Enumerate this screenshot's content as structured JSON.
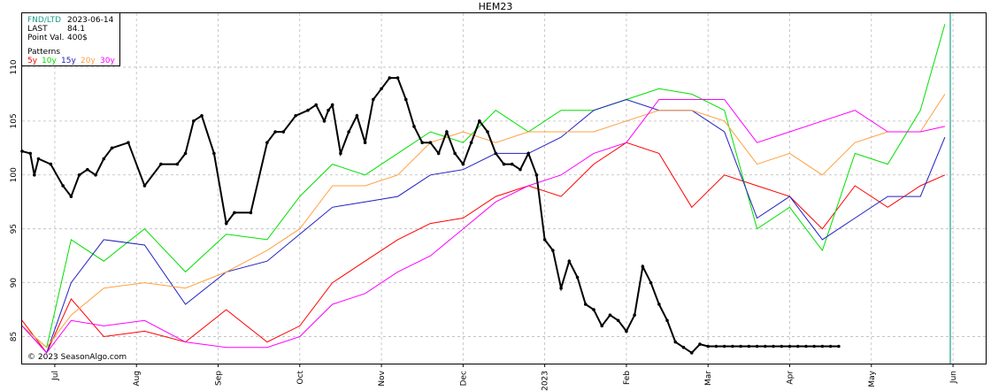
{
  "chart_data": {
    "type": "line",
    "title": "HEM23",
    "ylim": [
      82.5,
      115
    ],
    "yticks": [
      85,
      90,
      95,
      100,
      105,
      110
    ],
    "x_months": [
      "Jul",
      "Aug",
      "Sep",
      "Oct",
      "Nov",
      "Dec",
      "2023",
      "Feb",
      "Mar",
      "Apr",
      "May",
      "Jun"
    ],
    "grid": true,
    "info": {
      "fnd_label": "FND/LTD",
      "fnd_value": "2023-06-14",
      "last_label": "LAST",
      "last_value": "84.1",
      "pointval_label": "Point Val.",
      "pointval_value": "400$",
      "patterns_label": "Patterns",
      "pattern_labels": [
        "5y",
        "10y",
        "15y",
        "20y",
        "30y"
      ]
    },
    "copyright": "© 2023 SeasonAlgo.com",
    "colors": {
      "5y": "#ff0000",
      "10y": "#00e000",
      "15y": "#2020c0",
      "20y": "#ffa040",
      "30y": "#ff00ff",
      "price": "#000000",
      "fnd_line": "#1a9e8a",
      "fnd_text": "#1a9e8a"
    },
    "series": [
      {
        "name": "5y",
        "color_key": "5y",
        "x": [
          0,
          0.3,
          0.6,
          1.0,
          1.5,
          2.0,
          2.5,
          3.0,
          3.4,
          3.8,
          4.2,
          4.6,
          5.0,
          5.4,
          5.8,
          6.2,
          6.6,
          7.0,
          7.4,
          7.8,
          8.2,
          8.6,
          9.0,
          9.4,
          9.8,
          10.2,
          10.6,
          11.0,
          11.3
        ],
        "y": [
          86.5,
          83.5,
          88.5,
          85,
          85.5,
          84.5,
          87.5,
          84.5,
          86,
          90,
          92,
          94,
          95.5,
          96,
          98,
          99,
          98,
          101,
          103,
          102,
          97,
          100,
          99,
          98,
          95,
          99,
          97,
          99,
          100
        ]
      },
      {
        "name": "10y",
        "color_key": "10y",
        "x": [
          0,
          0.3,
          0.6,
          1.0,
          1.5,
          2.0,
          2.5,
          3.0,
          3.4,
          3.8,
          4.2,
          4.6,
          5.0,
          5.4,
          5.8,
          6.2,
          6.6,
          7.0,
          7.4,
          7.8,
          8.2,
          8.6,
          9.0,
          9.4,
          9.8,
          10.2,
          10.6,
          11.0,
          11.3
        ],
        "y": [
          86,
          84,
          94,
          92,
          95,
          91,
          94.5,
          94,
          98,
          101,
          100,
          102,
          104,
          103,
          106,
          104,
          106,
          106,
          107,
          108,
          107.5,
          106,
          95,
          97,
          93,
          102,
          101,
          106,
          114
        ]
      },
      {
        "name": "15y",
        "color_key": "15y",
        "x": [
          0,
          0.3,
          0.6,
          1.0,
          1.5,
          2.0,
          2.5,
          3.0,
          3.4,
          3.8,
          4.2,
          4.6,
          5.0,
          5.4,
          5.8,
          6.2,
          6.6,
          7.0,
          7.4,
          7.8,
          8.2,
          8.6,
          9.0,
          9.4,
          9.8,
          10.2,
          10.6,
          11.0,
          11.3
        ],
        "y": [
          86,
          83.5,
          90,
          94,
          93.5,
          88,
          91,
          92,
          94.5,
          97,
          97.5,
          98,
          100,
          100.5,
          102,
          102,
          103.5,
          106,
          107,
          106,
          106,
          104,
          96,
          98,
          94,
          96,
          98,
          98,
          103.5
        ]
      },
      {
        "name": "20y",
        "color_key": "20y",
        "x": [
          0,
          0.3,
          0.6,
          1.0,
          1.5,
          2.0,
          2.5,
          3.0,
          3.4,
          3.8,
          4.2,
          4.6,
          5.0,
          5.4,
          5.8,
          6.2,
          6.6,
          7.0,
          7.4,
          7.8,
          8.2,
          8.6,
          9.0,
          9.4,
          9.8,
          10.2,
          10.6,
          11.0,
          11.3
        ],
        "y": [
          86,
          84,
          87,
          89.5,
          90,
          89.5,
          91,
          93,
          95,
          99,
          99,
          100,
          103,
          104,
          103,
          104,
          104,
          104,
          105,
          106,
          106,
          105,
          101,
          102,
          100,
          103,
          104,
          104,
          107.5
        ]
      },
      {
        "name": "30y",
        "color_key": "30y",
        "x": [
          0,
          0.3,
          0.6,
          1.0,
          1.5,
          2.0,
          2.5,
          3.0,
          3.4,
          3.8,
          4.2,
          4.6,
          5.0,
          5.4,
          5.8,
          6.2,
          6.6,
          7.0,
          7.4,
          7.8,
          8.2,
          8.6,
          9.0,
          9.4,
          9.8,
          10.2,
          10.6,
          11.0,
          11.3
        ],
        "y": [
          86,
          83.5,
          86.5,
          86,
          86.5,
          84.5,
          84,
          84,
          85,
          88,
          89,
          91,
          92.5,
          95,
          97.5,
          99,
          100,
          102,
          103,
          107,
          107,
          107,
          103,
          104,
          105,
          106,
          104,
          104,
          104.5
        ]
      },
      {
        "name": "price",
        "color_key": "price",
        "markers": true,
        "x": [
          0,
          0.1,
          0.15,
          0.2,
          0.35,
          0.5,
          0.6,
          0.7,
          0.8,
          0.9,
          1.0,
          1.1,
          1.3,
          1.5,
          1.7,
          1.9,
          2.0,
          2.1,
          2.2,
          2.35,
          2.5,
          2.6,
          2.8,
          3.0,
          3.1,
          3.2,
          3.35,
          3.5,
          3.6,
          3.7,
          3.75,
          3.8,
          3.9,
          4.0,
          4.1,
          4.2,
          4.3,
          4.4,
          4.5,
          4.6,
          4.7,
          4.8,
          4.9,
          5.0,
          5.1,
          5.2,
          5.3,
          5.4,
          5.5,
          5.6,
          5.7,
          5.8,
          5.9,
          6.0,
          6.1,
          6.2,
          6.3,
          6.4,
          6.5,
          6.6,
          6.7,
          6.8,
          6.9,
          7.0,
          7.1,
          7.2,
          7.3,
          7.4,
          7.5,
          7.6,
          7.7,
          7.8,
          7.9,
          8.0,
          8.1,
          8.2,
          8.3,
          8.4,
          8.5,
          8.6,
          8.7,
          8.8,
          8.9,
          9.0,
          9.1,
          9.2,
          9.3,
          9.4,
          9.5,
          9.6,
          9.7,
          9.8,
          9.9,
          10.0
        ],
        "y": [
          102.2,
          102,
          100,
          101.5,
          101,
          99,
          98,
          100,
          100.5,
          100,
          101.5,
          102.5,
          103,
          99,
          101,
          101,
          102,
          105,
          105.5,
          102,
          95.5,
          96.5,
          96.5,
          103,
          104,
          104,
          105.5,
          106,
          106.5,
          105,
          106,
          106.5,
          102,
          104,
          105.5,
          103,
          107,
          108,
          109,
          109,
          107,
          104.5,
          103,
          103,
          102,
          104,
          102,
          101,
          103,
          105,
          104,
          102,
          101,
          101,
          100.5,
          102,
          100,
          94,
          93,
          89.5,
          92,
          90.5,
          88,
          87.5,
          86,
          87,
          86.5,
          85.5,
          87,
          91.5,
          90,
          88,
          86.5,
          84.5,
          84,
          83.5,
          84.3,
          84.1,
          84.1,
          84.1,
          84.1,
          84.1,
          84.1,
          84.1,
          84.1,
          84.1,
          84.1,
          84.1,
          84.1,
          84.1,
          84.1,
          84.1,
          84.1,
          84.1
        ]
      }
    ]
  }
}
